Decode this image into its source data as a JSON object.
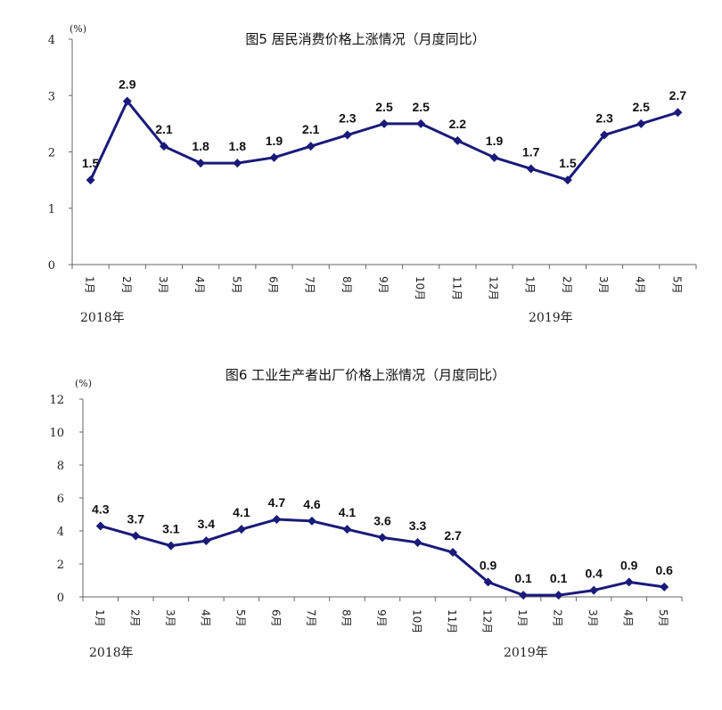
{
  "charts": [
    {
      "title": "图5   居民消费价格上涨情况（月度同比）",
      "unit": "(%)",
      "year_labels": [
        "2018年",
        "2019年"
      ]
    },
    {
      "title": "图6   工业生产者出厂价格上涨情况（月度同比）",
      "unit": "(%)",
      "year_labels": [
        "2018年",
        "2019年"
      ]
    }
  ],
  "colors": {
    "series": "#1a1a7a",
    "axis": "#666666"
  },
  "chart_data": [
    {
      "type": "line",
      "title": "图5   居民消费价格上涨情况（月度同比）",
      "ylabel": "(%)",
      "ylim": [
        0,
        4
      ],
      "yticks": [
        0,
        1,
        2,
        3,
        4
      ],
      "categories": [
        "1月",
        "2月",
        "3月",
        "4月",
        "5月",
        "6月",
        "7月",
        "8月",
        "9月",
        "10月",
        "11月",
        "12月",
        "1月",
        "2月",
        "3月",
        "4月",
        "5月"
      ],
      "year_groups": [
        {
          "label": "2018年",
          "start": 0
        },
        {
          "label": "2019年",
          "start": 12
        }
      ],
      "values": [
        1.5,
        2.9,
        2.1,
        1.8,
        1.8,
        1.9,
        2.1,
        2.3,
        2.5,
        2.5,
        2.2,
        1.9,
        1.7,
        1.5,
        2.3,
        2.5,
        2.7
      ],
      "grid": false
    },
    {
      "type": "line",
      "title": "图6   工业生产者出厂价格上涨情况（月度同比）",
      "ylabel": "(%)",
      "ylim": [
        0,
        12
      ],
      "yticks": [
        0,
        2,
        4,
        6,
        8,
        10,
        12
      ],
      "categories": [
        "1月",
        "2月",
        "3月",
        "4月",
        "5月",
        "6月",
        "7月",
        "8月",
        "9月",
        "10月",
        "11月",
        "12月",
        "1月",
        "2月",
        "3月",
        "4月",
        "5月"
      ],
      "year_groups": [
        {
          "label": "2018年",
          "start": 0
        },
        {
          "label": "2019年",
          "start": 12
        }
      ],
      "values": [
        4.3,
        3.7,
        3.1,
        3.4,
        4.1,
        4.7,
        4.6,
        4.1,
        3.6,
        3.3,
        2.7,
        0.9,
        0.1,
        0.1,
        0.4,
        0.9,
        0.6
      ],
      "grid": false
    }
  ]
}
